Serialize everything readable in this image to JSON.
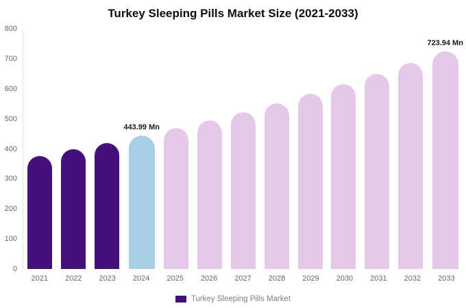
{
  "chart_data": {
    "type": "bar",
    "title": "Turkey Sleeping Pills Market Size (2021-2033)",
    "categories": [
      "2021",
      "2022",
      "2023",
      "2024",
      "2025",
      "2026",
      "2027",
      "2028",
      "2029",
      "2030",
      "2031",
      "2032",
      "2033"
    ],
    "values": [
      377,
      398.5,
      420.5,
      443.99,
      468.8,
      495,
      522.6,
      551.8,
      582.5,
      615,
      649.3,
      685.7,
      723.94
    ],
    "ylim": [
      0,
      800
    ],
    "y_ticks": [
      0,
      100,
      200,
      300,
      400,
      500,
      600,
      700,
      800
    ],
    "grid": false,
    "legend_position": "bottom",
    "annotations": [
      {
        "category": "2024",
        "text": "443.99 Mn"
      },
      {
        "category": "2033",
        "text": "723.94 Mn"
      }
    ],
    "bar_colors": [
      "#45107a",
      "#45107a",
      "#45107a",
      "#a7cfe5",
      "#e6c9e9",
      "#e6c9e9",
      "#e6c9e9",
      "#e6c9e9",
      "#e6c9e9",
      "#e6c9e9",
      "#e6c9e9",
      "#e6c9e9",
      "#e6c9e9"
    ]
  },
  "legend": {
    "label": "Turkey Sleeping Pills Market",
    "swatch_color": "#45107a"
  }
}
